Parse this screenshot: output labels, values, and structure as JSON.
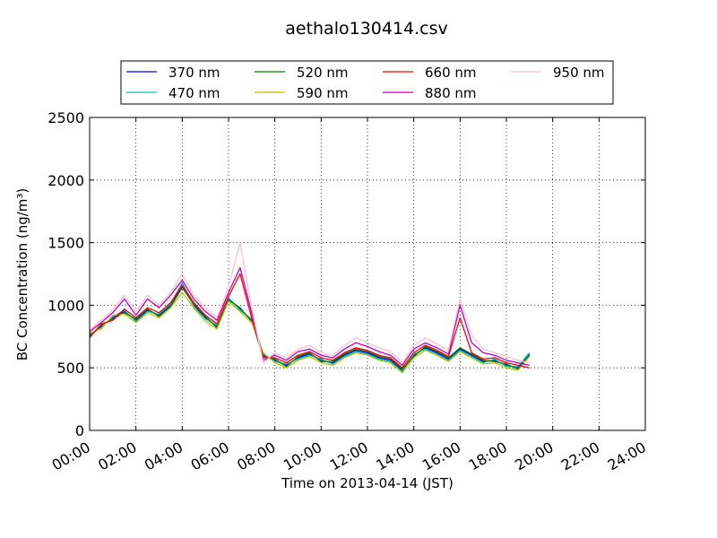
{
  "chart_data": {
    "type": "line",
    "title": "aethalo130414.csv",
    "xlabel": "Time on 2013-04-14 (JST)",
    "ylabel": "BC Concentration (ng/m³)",
    "xlim": [
      "00:00",
      "24:00"
    ],
    "ylim": [
      0,
      2500
    ],
    "x_tick_labels": [
      "00:00",
      "02:00",
      "04:00",
      "06:00",
      "08:00",
      "10:00",
      "12:00",
      "14:00",
      "16:00",
      "18:00",
      "20:00",
      "22:00",
      "24:00"
    ],
    "y_tick_labels": [
      "0",
      "500",
      "1000",
      "1500",
      "2000",
      "2500"
    ],
    "y_ticks": [
      0,
      500,
      1000,
      1500,
      2000,
      2500
    ],
    "grid": true,
    "legend_position": "top",
    "x": [
      "00:00",
      "00:30",
      "01:00",
      "01:30",
      "02:00",
      "02:30",
      "03:00",
      "03:30",
      "04:00",
      "04:30",
      "05:00",
      "05:30",
      "06:00",
      "06:30",
      "07:00",
      "07:30",
      "08:00",
      "08:30",
      "09:00",
      "09:30",
      "10:00",
      "10:30",
      "11:00",
      "11:30",
      "12:00",
      "12:30",
      "13:00",
      "13:30",
      "14:00",
      "14:30",
      "15:00",
      "15:30",
      "16:00",
      "16:30",
      "17:00",
      "17:30",
      "18:00",
      "18:30",
      "19:00"
    ],
    "series": [
      {
        "name": "370 nm",
        "color": "#0000ff",
        "values": [
          760,
          830,
          900,
          950,
          880,
          960,
          920,
          1000,
          1150,
          1000,
          900,
          830,
          1050,
          970,
          880,
          600,
          560,
          520,
          580,
          610,
          560,
          540,
          600,
          640,
          620,
          580,
          560,
          480,
          600,
          660,
          620,
          570,
          650,
          600,
          550,
          560,
          520,
          500,
          610
        ]
      },
      {
        "name": "470 nm",
        "color": "#00bfbf",
        "values": [
          770,
          820,
          910,
          960,
          870,
          950,
          930,
          1010,
          1180,
          990,
          890,
          840,
          1060,
          960,
          890,
          610,
          550,
          530,
          570,
          600,
          570,
          530,
          590,
          630,
          610,
          570,
          550,
          470,
          610,
          650,
          610,
          560,
          640,
          590,
          540,
          570,
          510,
          510,
          620
        ]
      },
      {
        "name": "520 nm",
        "color": "#008000",
        "values": [
          750,
          840,
          890,
          940,
          890,
          970,
          910,
          990,
          1140,
          1010,
          910,
          820,
          1040,
          980,
          870,
          590,
          570,
          510,
          590,
          620,
          550,
          550,
          610,
          650,
          630,
          590,
          570,
          490,
          590,
          670,
          630,
          580,
          660,
          610,
          560,
          550,
          530,
          490,
          600
        ]
      },
      {
        "name": "590 nm",
        "color": "#bfbf00",
        "values": [
          780,
          810,
          920,
          930,
          860,
          940,
          900,
          980,
          1100,
          980,
          870,
          810,
          1030,
          950,
          860,
          620,
          540,
          500,
          560,
          590,
          540,
          520,
          580,
          620,
          600,
          560,
          540,
          460,
          580,
          640,
          600,
          550,
          630,
          580,
          530,
          540,
          500,
          480,
          590
        ]
      },
      {
        "name": "660 nm",
        "color": "#ff0000",
        "values": [
          740,
          850,
          880,
          970,
          900,
          980,
          940,
          1020,
          1160,
          1020,
          920,
          850,
          1070,
          1250,
          900,
          580,
          580,
          540,
          600,
          630,
          580,
          560,
          620,
          660,
          640,
          600,
          580,
          500,
          620,
          680,
          640,
          590,
          900,
          620,
          570,
          580,
          540,
          520,
          500
        ]
      },
      {
        "name": "880 nm",
        "color": "#bf00bf",
        "values": [
          790,
          860,
          940,
          1050,
          920,
          1050,
          980,
          1080,
          1200,
          1050,
          950,
          880,
          1100,
          1300,
          940,
          560,
          600,
          560,
          630,
          650,
          600,
          580,
          650,
          700,
          670,
          630,
          600,
          520,
          650,
          700,
          660,
          610,
          1000,
          700,
          620,
          600,
          560,
          540,
          520
        ]
      },
      {
        "name": "950 nm",
        "color": "#ffc0cb",
        "values": [
          800,
          880,
          960,
          1080,
          950,
          1080,
          1000,
          1100,
          1250,
          1080,
          980,
          900,
          1150,
          1500,
          980,
          540,
          620,
          580,
          650,
          680,
          620,
          600,
          680,
          740,
          700,
          660,
          630,
          540,
          680,
          740,
          690,
          640,
          1050,
          760,
          650,
          620,
          590,
          560,
          540
        ]
      }
    ]
  }
}
